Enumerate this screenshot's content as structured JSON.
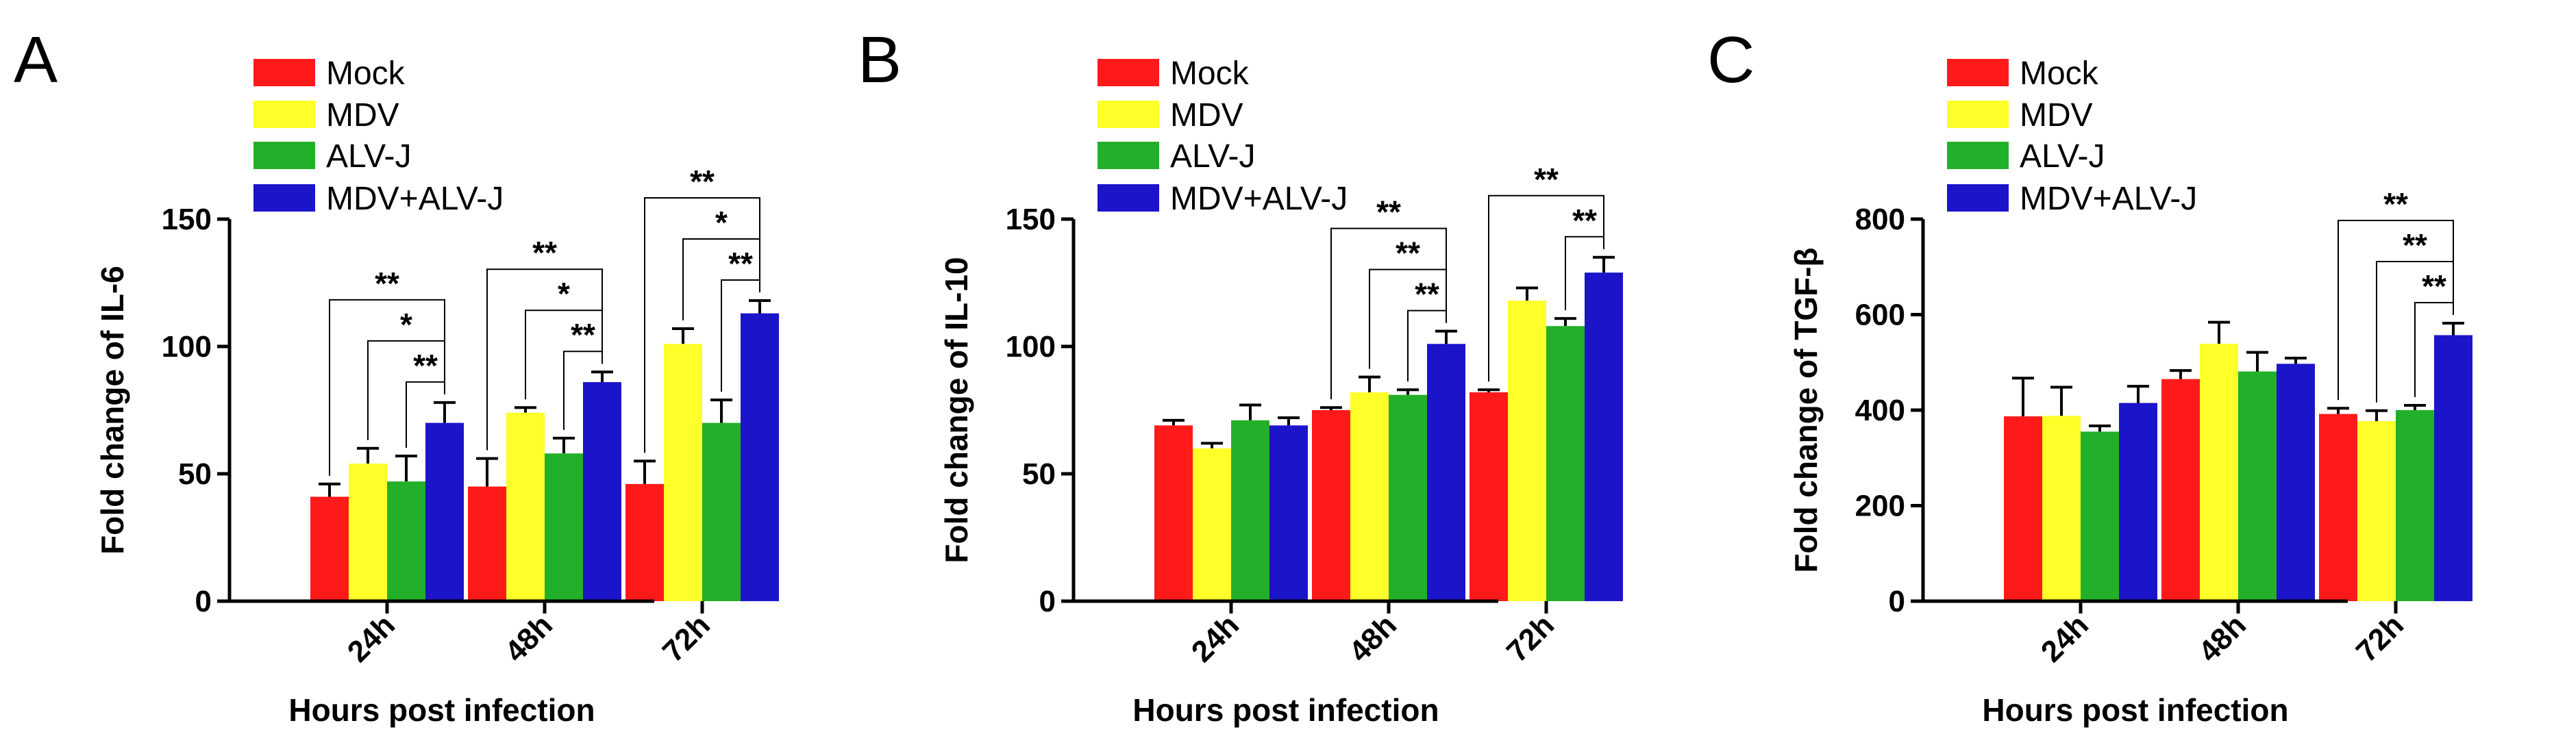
{
  "figure": {
    "panels": [
      "A",
      "B",
      "C"
    ]
  },
  "colors": {
    "Mock": "#ff1a1a",
    "MDV": "#ffff2a",
    "ALV-J": "#22b02a",
    "MDV+ALV-J": "#1c14c8",
    "axis": "#000000",
    "errorbar": "#000000"
  },
  "legend": [
    "Mock",
    "MDV",
    "ALV-J",
    "MDV+ALV-J"
  ],
  "chart_data": [
    {
      "panel": "A",
      "type": "bar",
      "xlabel": "Hours post infection",
      "ylabel": "Fold change of IL-6",
      "categories": [
        "24h",
        "48h",
        "72h"
      ],
      "ylim": [
        0,
        150
      ],
      "yticks": [
        "0",
        "50",
        "100",
        "150"
      ],
      "series": [
        {
          "name": "Mock",
          "values": [
            41,
            45,
            46
          ],
          "errors": [
            5,
            11,
            9
          ]
        },
        {
          "name": "MDV",
          "values": [
            54,
            74,
            101
          ],
          "errors": [
            6,
            2,
            6
          ]
        },
        {
          "name": "ALV-J",
          "values": [
            47,
            58,
            70
          ],
          "errors": [
            10,
            6,
            9
          ]
        },
        {
          "name": "MDV+ALV-J",
          "values": [
            70,
            86,
            113
          ],
          "errors": [
            8,
            4,
            5
          ]
        }
      ],
      "significance": [
        {
          "category": "24h",
          "from": "Mock",
          "to": "MDV+ALV-J",
          "label": "**"
        },
        {
          "category": "24h",
          "from": "MDV",
          "to": "MDV+ALV-J",
          "label": "*"
        },
        {
          "category": "24h",
          "from": "ALV-J",
          "to": "MDV+ALV-J",
          "label": "**"
        },
        {
          "category": "48h",
          "from": "Mock",
          "to": "MDV+ALV-J",
          "label": "**"
        },
        {
          "category": "48h",
          "from": "MDV",
          "to": "MDV+ALV-J",
          "label": "*"
        },
        {
          "category": "48h",
          "from": "ALV-J",
          "to": "MDV+ALV-J",
          "label": "**"
        },
        {
          "category": "72h",
          "from": "Mock",
          "to": "MDV+ALV-J",
          "label": "**"
        },
        {
          "category": "72h",
          "from": "MDV",
          "to": "MDV+ALV-J",
          "label": "*"
        },
        {
          "category": "72h",
          "from": "ALV-J",
          "to": "MDV+ALV-J",
          "label": "**"
        }
      ]
    },
    {
      "panel": "B",
      "type": "bar",
      "xlabel": "Hours post infection",
      "ylabel": "Fold change of IL-10",
      "categories": [
        "24h",
        "48h",
        "72h"
      ],
      "ylim": [
        0,
        150
      ],
      "yticks": [
        "0",
        "50",
        "100",
        "150"
      ],
      "series": [
        {
          "name": "Mock",
          "values": [
            69,
            75,
            82
          ],
          "errors": [
            2,
            1,
            1
          ]
        },
        {
          "name": "MDV",
          "values": [
            60,
            82,
            118
          ],
          "errors": [
            2,
            6,
            5
          ]
        },
        {
          "name": "ALV-J",
          "values": [
            71,
            81,
            108
          ],
          "errors": [
            6,
            2,
            3
          ]
        },
        {
          "name": "MDV+ALV-J",
          "values": [
            69,
            101,
            129
          ],
          "errors": [
            3,
            5,
            6
          ]
        }
      ],
      "significance": [
        {
          "category": "48h",
          "from": "Mock",
          "to": "MDV+ALV-J",
          "label": "**"
        },
        {
          "category": "48h",
          "from": "MDV",
          "to": "MDV+ALV-J",
          "label": "**"
        },
        {
          "category": "48h",
          "from": "ALV-J",
          "to": "MDV+ALV-J",
          "label": "**"
        },
        {
          "category": "72h",
          "from": "Mock",
          "to": "MDV+ALV-J",
          "label": "**"
        },
        {
          "category": "72h",
          "from": "ALV-J",
          "to": "MDV+ALV-J",
          "label": "**"
        }
      ]
    },
    {
      "panel": "C",
      "type": "bar",
      "xlabel": "Hours post infection",
      "ylabel": "Fold change of TGF-β",
      "categories": [
        "24h",
        "48h",
        "72h"
      ],
      "ylim": [
        0,
        800
      ],
      "yticks": [
        "0",
        "200",
        "400",
        "600",
        "800"
      ],
      "series": [
        {
          "name": "Mock",
          "values": [
            387,
            465,
            392
          ],
          "errors": [
            80,
            18,
            12
          ]
        },
        {
          "name": "MDV",
          "values": [
            388,
            539,
            377
          ],
          "errors": [
            60,
            45,
            22
          ]
        },
        {
          "name": "ALV-J",
          "values": [
            355,
            481,
            400
          ],
          "errors": [
            12,
            40,
            10
          ]
        },
        {
          "name": "MDV+ALV-J",
          "values": [
            415,
            497,
            557
          ],
          "errors": [
            35,
            12,
            25
          ]
        }
      ],
      "significance": [
        {
          "category": "72h",
          "from": "Mock",
          "to": "MDV+ALV-J",
          "label": "**"
        },
        {
          "category": "72h",
          "from": "MDV",
          "to": "MDV+ALV-J",
          "label": "**"
        },
        {
          "category": "72h",
          "from": "ALV-J",
          "to": "MDV+ALV-J",
          "label": "**"
        }
      ]
    }
  ]
}
